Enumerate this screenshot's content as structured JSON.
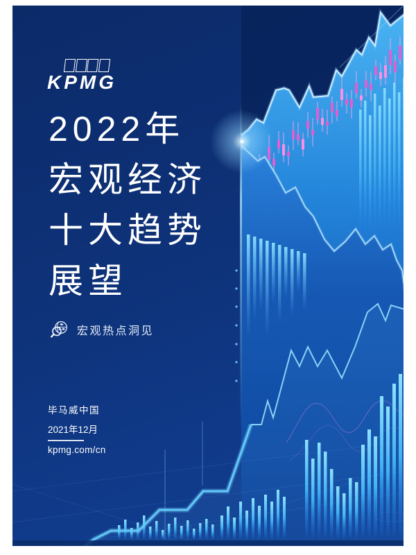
{
  "brand": {
    "name": "KPMG"
  },
  "cover": {
    "title_lines": [
      "2022年",
      "宏观经济",
      "十大趋势",
      "展望"
    ],
    "badge_label": "宏观热点洞见",
    "publisher": "毕马威中国",
    "date": "2021年12月",
    "website": "kpmg.com/cn"
  },
  "icons": {
    "badge_icon": "globe-magnifier"
  },
  "colors": {
    "page_background_top": "#0b2a68",
    "page_background_bottom": "#114095",
    "chart_area_bright": "#3fa9ec",
    "accent_cyan": "#5ecdf9",
    "candlestick_pink": "#e35fd1",
    "line_highlight": "#cdeeff",
    "text": "#ffffff"
  }
}
